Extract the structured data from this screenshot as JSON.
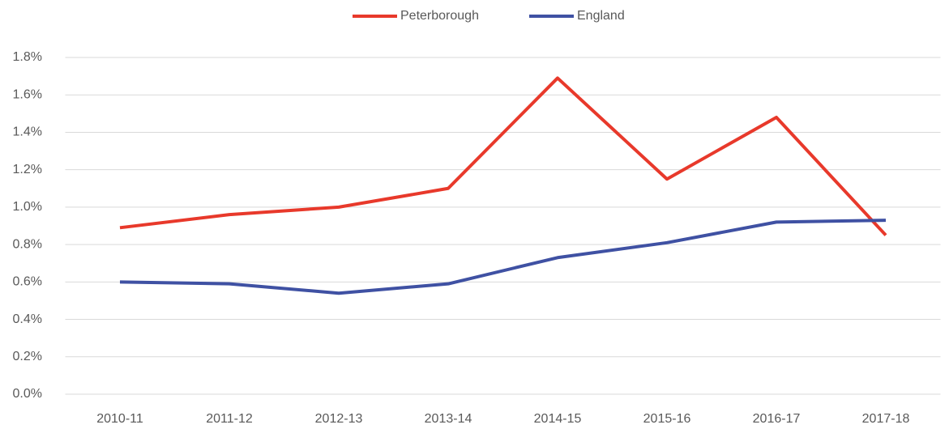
{
  "chart_data": {
    "type": "line",
    "categories": [
      "2010-11",
      "2011-12",
      "2012-13",
      "2013-14",
      "2014-15",
      "2015-16",
      "2016-17",
      "2017-18"
    ],
    "series": [
      {
        "name": "Peterborough",
        "color": "#e8392b",
        "values": [
          0.89,
          0.96,
          1.0,
          1.1,
          1.69,
          1.15,
          1.48,
          0.85
        ]
      },
      {
        "name": "England",
        "color": "#3f51a3",
        "values": [
          0.6,
          0.59,
          0.54,
          0.59,
          0.73,
          0.81,
          0.92,
          0.93
        ]
      }
    ],
    "ylim": [
      0,
      1.8
    ],
    "yticks": [
      {
        "value": 0,
        "label": "0.0%"
      },
      {
        "value": 0.2,
        "label": "0.2%"
      },
      {
        "value": 0.4,
        "label": "0.4%"
      },
      {
        "value": 0.6,
        "label": "0.6%"
      },
      {
        "value": 0.8,
        "label": "0.8%"
      },
      {
        "value": 1.0,
        "label": "1.0%"
      },
      {
        "value": 1.2,
        "label": "1.2%"
      },
      {
        "value": 1.4,
        "label": "1.4%"
      },
      {
        "value": 1.6,
        "label": "1.6%"
      },
      {
        "value": 1.8,
        "label": "1.8%"
      }
    ],
    "grid": true,
    "legend": "top"
  }
}
